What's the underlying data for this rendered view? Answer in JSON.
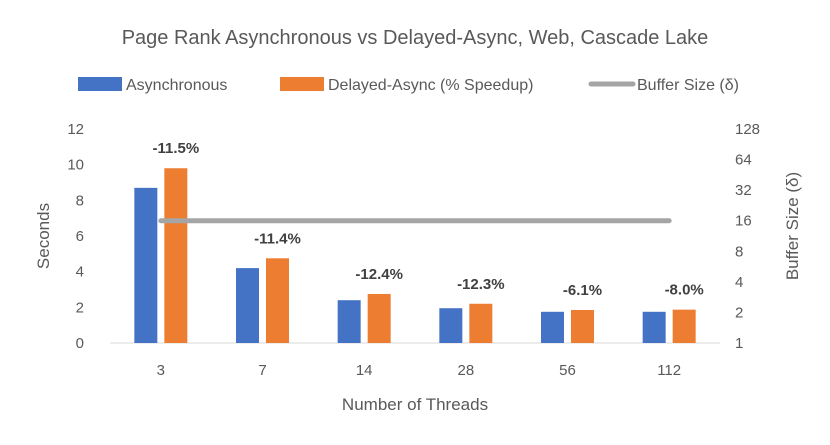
{
  "chart_data": {
    "type": "bar",
    "title": "Page Rank Asynchronous vs Delayed-Async, Web, Cascade Lake",
    "xlabel": "Number of Threads",
    "ylabel": "Seconds",
    "y2label": "Buffer Size (δ)",
    "categories": [
      "3",
      "7",
      "14",
      "28",
      "56",
      "112"
    ],
    "ylim": [
      0,
      12
    ],
    "yticks": [
      "0",
      "2",
      "4",
      "6",
      "8",
      "10",
      "12"
    ],
    "y2_scale": "log2",
    "y2lim": [
      1,
      128
    ],
    "y2ticks": [
      "1",
      "2",
      "4",
      "8",
      "16",
      "32",
      "64",
      "128"
    ],
    "series": [
      {
        "name": "Asynchronous",
        "color": "#4472c4",
        "values": [
          8.7,
          4.2,
          2.4,
          1.95,
          1.75,
          1.75
        ]
      },
      {
        "name": "Delayed-Async (% Speedup)",
        "color": "#ed7d31",
        "values": [
          9.8,
          4.75,
          2.75,
          2.2,
          1.85,
          1.87
        ],
        "labels": [
          "-11.5%",
          "-11.4%",
          "-12.4%",
          "-12.3%",
          "-6.1%",
          "-8.0%"
        ]
      },
      {
        "name": "Buffer Size (δ)",
        "type": "line",
        "axis": "secondary",
        "color": "#a5a5a5",
        "values": [
          16,
          16,
          16,
          16,
          16,
          16
        ]
      }
    ],
    "legend_position": "top",
    "grid": false
  }
}
